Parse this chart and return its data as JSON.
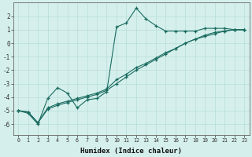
{
  "xlabel": "Humidex (Indice chaleur)",
  "background_color": "#d5f0ec",
  "grid_color": "#b8ddd9",
  "line_color": "#1a6b60",
  "x_values": [
    0,
    1,
    2,
    3,
    4,
    5,
    6,
    7,
    8,
    9,
    10,
    11,
    12,
    13,
    14,
    15,
    16,
    17,
    18,
    19,
    20,
    21,
    22,
    23
  ],
  "series1": [
    -5.0,
    -5.2,
    -6.0,
    -4.1,
    -3.3,
    -3.7,
    -4.8,
    -4.2,
    -4.1,
    -3.6,
    1.2,
    1.5,
    2.6,
    1.8,
    1.3,
    0.9,
    0.9,
    0.9,
    0.9,
    1.1,
    1.1,
    1.1,
    1.0,
    1.0
  ],
  "series2": [
    -5.0,
    -5.1,
    -5.9,
    -4.8,
    -4.5,
    -4.3,
    -4.1,
    -3.9,
    -3.7,
    -3.4,
    -2.7,
    -2.3,
    -1.8,
    -1.5,
    -1.1,
    -0.7,
    -0.4,
    0.0,
    0.3,
    0.5,
    0.7,
    0.9,
    1.0,
    1.0
  ],
  "series3": [
    -5.0,
    -5.1,
    -5.9,
    -4.9,
    -4.6,
    -4.4,
    -4.2,
    -4.0,
    -3.8,
    -3.5,
    -3.0,
    -2.5,
    -2.0,
    -1.6,
    -1.2,
    -0.8,
    -0.4,
    0.0,
    0.3,
    0.6,
    0.8,
    0.9,
    1.0,
    1.0
  ],
  "ylim": [
    -6.8,
    3.0
  ],
  "xlim": [
    -0.5,
    23.5
  ],
  "yticks": [
    -6,
    -5,
    -4,
    -3,
    -2,
    -1,
    0,
    1,
    2
  ],
  "xticks": [
    0,
    1,
    2,
    3,
    4,
    5,
    6,
    7,
    8,
    9,
    10,
    11,
    12,
    13,
    14,
    15,
    16,
    17,
    18,
    19,
    20,
    21,
    22,
    23
  ]
}
